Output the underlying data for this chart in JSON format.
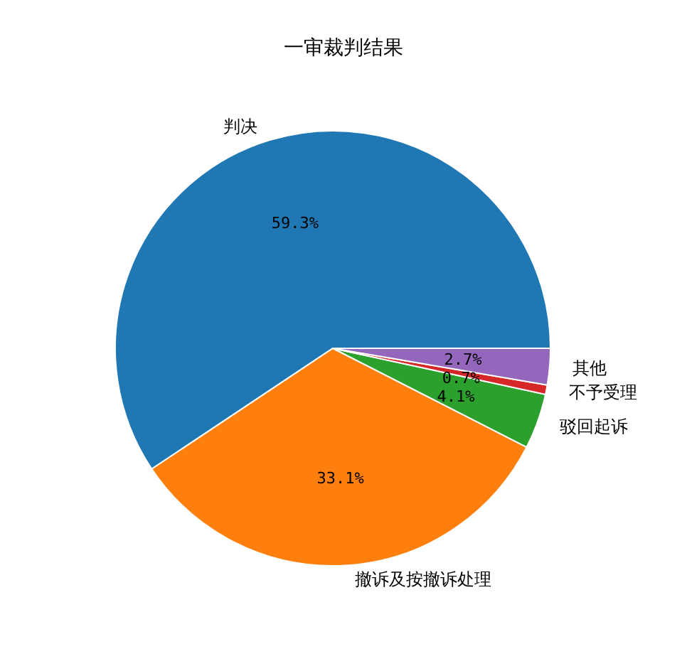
{
  "chart_data": {
    "type": "pie",
    "title": "一审裁判结果",
    "categories": [
      "判决",
      "撤诉及按撤诉处理",
      "驳回起诉",
      "不予受理",
      "其他"
    ],
    "values": [
      59.3,
      33.1,
      4.1,
      0.7,
      2.7
    ],
    "colors": [
      "#1f77b4",
      "#ff7f0e",
      "#2ca02c",
      "#d62728",
      "#9467bd"
    ],
    "value_labels": [
      "59.3%",
      "33.1%",
      "4.1%",
      "0.7%",
      "2.7%"
    ],
    "legend": false
  }
}
